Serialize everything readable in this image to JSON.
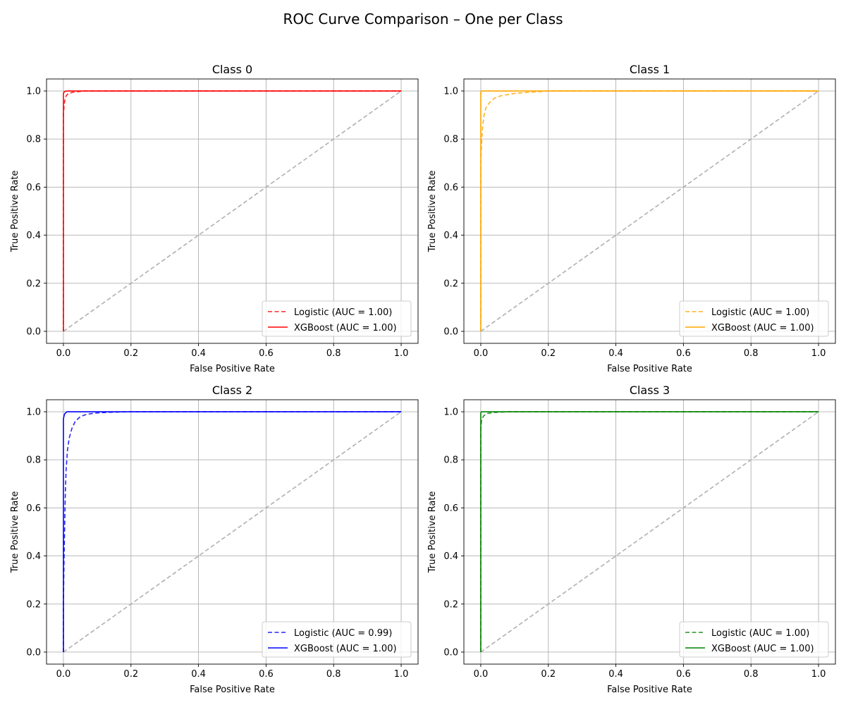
{
  "suptitle": "ROC Curve Comparison – One per Class",
  "colors": {
    "grid": "#b0b0b0",
    "chance": "#b0b0b0",
    "axis": "#000000"
  },
  "chart_data": [
    {
      "type": "line",
      "title": "Class 0",
      "xlabel": "False Positive Rate",
      "ylabel": "True Positive Rate",
      "xlim": [
        -0.05,
        1.05
      ],
      "ylim": [
        -0.05,
        1.05
      ],
      "xticks": [
        0.0,
        0.2,
        0.4,
        0.6,
        0.8,
        1.0
      ],
      "yticks": [
        0.0,
        0.2,
        0.4,
        0.6,
        0.8,
        1.0
      ],
      "grid": true,
      "legend_position": "lower right",
      "color": "#ff0000",
      "series": [
        {
          "name": "Logistic (AUC = 1.00)",
          "style": "dashed",
          "x": [
            0.0,
            0.0,
            0.002,
            0.004,
            0.008,
            0.015,
            0.03,
            0.06,
            1.0
          ],
          "y": [
            0.0,
            0.9,
            0.94,
            0.96,
            0.98,
            0.99,
            0.995,
            1.0,
            1.0
          ]
        },
        {
          "name": "XGBoost (AUC = 1.00)",
          "style": "solid",
          "x": [
            0.0,
            0.0,
            0.003,
            0.01,
            1.0
          ],
          "y": [
            0.0,
            0.99,
            0.998,
            1.0,
            1.0
          ]
        }
      ]
    },
    {
      "type": "line",
      "title": "Class 1",
      "xlabel": "False Positive Rate",
      "ylabel": "True Positive Rate",
      "xlim": [
        -0.05,
        1.05
      ],
      "ylim": [
        -0.05,
        1.05
      ],
      "xticks": [
        0.0,
        0.2,
        0.4,
        0.6,
        0.8,
        1.0
      ],
      "yticks": [
        0.0,
        0.2,
        0.4,
        0.6,
        0.8,
        1.0
      ],
      "grid": true,
      "legend_position": "lower right",
      "color": "#ffa500",
      "series": [
        {
          "name": "Logistic (AUC = 1.00)",
          "style": "dashed",
          "x": [
            0.0,
            0.0,
            0.003,
            0.006,
            0.01,
            0.015,
            0.025,
            0.04,
            0.06,
            0.1,
            0.15,
            0.2,
            1.0
          ],
          "y": [
            0.0,
            0.7,
            0.8,
            0.86,
            0.9,
            0.93,
            0.95,
            0.97,
            0.98,
            0.99,
            0.995,
            1.0,
            1.0
          ]
        },
        {
          "name": "XGBoost (AUC = 1.00)",
          "style": "solid",
          "x": [
            0.0,
            0.0,
            0.002,
            1.0
          ],
          "y": [
            0.0,
            0.995,
            1.0,
            1.0
          ]
        }
      ]
    },
    {
      "type": "line",
      "title": "Class 2",
      "xlabel": "False Positive Rate",
      "ylabel": "True Positive Rate",
      "xlim": [
        -0.05,
        1.05
      ],
      "ylim": [
        -0.05,
        1.05
      ],
      "xticks": [
        0.0,
        0.2,
        0.4,
        0.6,
        0.8,
        1.0
      ],
      "yticks": [
        0.0,
        0.2,
        0.4,
        0.6,
        0.8,
        1.0
      ],
      "grid": true,
      "legend_position": "lower right",
      "color": "#0000ff",
      "series": [
        {
          "name": "Logistic (AUC = 0.99)",
          "style": "dashed",
          "x": [
            0.0,
            0.0,
            0.002,
            0.004,
            0.006,
            0.008,
            0.012,
            0.017,
            0.025,
            0.035,
            0.05,
            0.07,
            0.1,
            0.14,
            0.2,
            1.0
          ],
          "y": [
            0.0,
            0.2,
            0.4,
            0.55,
            0.68,
            0.76,
            0.84,
            0.89,
            0.93,
            0.96,
            0.98,
            0.99,
            0.995,
            0.998,
            1.0,
            1.0
          ]
        },
        {
          "name": "XGBoost (AUC = 1.00)",
          "style": "solid",
          "x": [
            0.0,
            0.0,
            0.003,
            0.01,
            1.0
          ],
          "y": [
            0.0,
            0.97,
            0.99,
            1.0,
            1.0
          ]
        }
      ]
    },
    {
      "type": "line",
      "title": "Class 3",
      "xlabel": "False Positive Rate",
      "ylabel": "True Positive Rate",
      "xlim": [
        -0.05,
        1.05
      ],
      "ylim": [
        -0.05,
        1.05
      ],
      "xticks": [
        0.0,
        0.2,
        0.4,
        0.6,
        0.8,
        1.0
      ],
      "yticks": [
        0.0,
        0.2,
        0.4,
        0.6,
        0.8,
        1.0
      ],
      "grid": true,
      "legend_position": "lower right",
      "color": "#008000",
      "series": [
        {
          "name": "Logistic (AUC = 1.00)",
          "style": "dashed",
          "x": [
            0.0,
            0.0,
            0.002,
            0.005,
            0.01,
            0.02,
            0.04,
            0.08,
            1.0
          ],
          "y": [
            0.0,
            0.93,
            0.96,
            0.975,
            0.985,
            0.993,
            0.997,
            1.0,
            1.0
          ]
        },
        {
          "name": "XGBoost (AUC = 1.00)",
          "style": "solid",
          "x": [
            0.0,
            0.0,
            0.002,
            1.0
          ],
          "y": [
            0.0,
            0.996,
            1.0,
            1.0
          ]
        }
      ]
    }
  ]
}
